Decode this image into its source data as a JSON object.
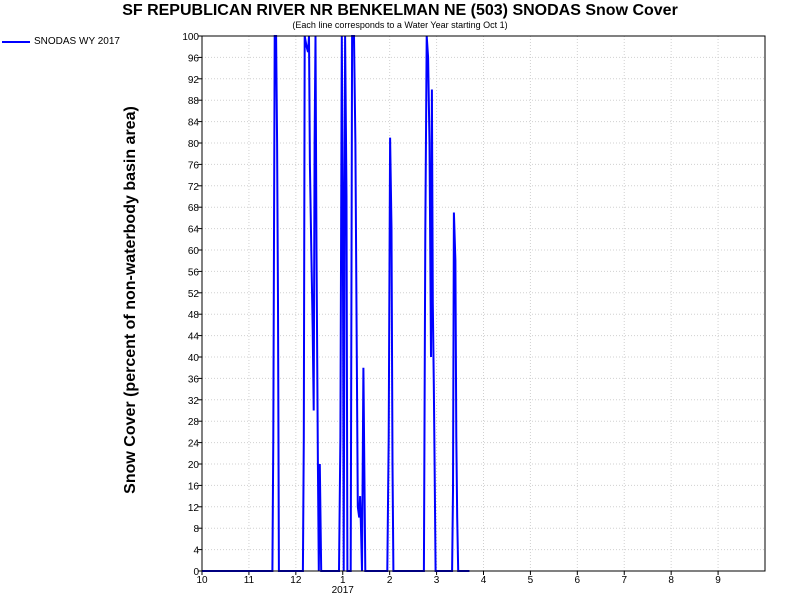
{
  "chart_data": {
    "type": "line",
    "title": "SF REPUBLICAN RIVER NR BENKELMAN NE (503) SNODAS Snow Cover",
    "subtitle": "(Each line corresponds to a Water Year starting Oct 1)",
    "ylabel": "Snow Cover (percent of non-waterbody basin area)",
    "xlabel": "",
    "legend_position": "top-left",
    "grid": true,
    "xlim": [
      0,
      12
    ],
    "ylim": [
      0,
      100
    ],
    "x_ticks": [
      {
        "x": 0,
        "label": "10"
      },
      {
        "x": 1,
        "label": "11"
      },
      {
        "x": 2,
        "label": "12"
      },
      {
        "x": 3,
        "label": "1"
      },
      {
        "x": 4,
        "label": "2"
      },
      {
        "x": 5,
        "label": "3"
      },
      {
        "x": 6,
        "label": "4"
      },
      {
        "x": 7,
        "label": "5"
      },
      {
        "x": 8,
        "label": "6"
      },
      {
        "x": 9,
        "label": "7"
      },
      {
        "x": 10,
        "label": "8"
      },
      {
        "x": 11,
        "label": "9"
      }
    ],
    "x_year_label": {
      "x": 3,
      "label": "2017"
    },
    "y_ticks": [
      0,
      4,
      8,
      12,
      16,
      20,
      24,
      28,
      32,
      36,
      40,
      44,
      48,
      52,
      56,
      60,
      64,
      68,
      72,
      76,
      80,
      84,
      88,
      92,
      96,
      100
    ],
    "series": [
      {
        "name": "SNODAS WY 2017",
        "color": "#0000ff",
        "x_unit": "months since Oct 1, 2016",
        "points": [
          [
            0.0,
            0
          ],
          [
            1.5,
            0
          ],
          [
            1.52,
            25
          ],
          [
            1.55,
            100
          ],
          [
            1.58,
            100
          ],
          [
            1.6,
            80
          ],
          [
            1.62,
            50
          ],
          [
            1.64,
            0
          ],
          [
            2.15,
            0
          ],
          [
            2.17,
            25
          ],
          [
            2.19,
            100
          ],
          [
            2.23,
            98
          ],
          [
            2.26,
            97
          ],
          [
            2.28,
            100
          ],
          [
            2.3,
            76
          ],
          [
            2.33,
            60
          ],
          [
            2.36,
            45
          ],
          [
            2.38,
            30
          ],
          [
            2.4,
            80
          ],
          [
            2.42,
            100
          ],
          [
            2.44,
            60
          ],
          [
            2.47,
            20
          ],
          [
            2.49,
            0
          ],
          [
            2.51,
            20
          ],
          [
            2.54,
            0
          ],
          [
            2.92,
            0
          ],
          [
            2.95,
            25
          ],
          [
            2.98,
            100
          ],
          [
            3.0,
            70
          ],
          [
            3.02,
            0
          ],
          [
            3.05,
            100
          ],
          [
            3.08,
            70
          ],
          [
            3.1,
            0
          ],
          [
            3.17,
            0
          ],
          [
            3.2,
            100
          ],
          [
            3.24,
            100
          ],
          [
            3.27,
            80
          ],
          [
            3.3,
            40
          ],
          [
            3.32,
            12
          ],
          [
            3.35,
            10
          ],
          [
            3.37,
            14
          ],
          [
            3.39,
            8
          ],
          [
            3.41,
            0
          ],
          [
            3.44,
            38
          ],
          [
            3.46,
            20
          ],
          [
            3.48,
            0
          ],
          [
            3.95,
            0
          ],
          [
            3.98,
            25
          ],
          [
            4.01,
            81
          ],
          [
            4.04,
            64
          ],
          [
            4.06,
            20
          ],
          [
            4.08,
            0
          ],
          [
            4.73,
            0
          ],
          [
            4.76,
            63
          ],
          [
            4.79,
            100
          ],
          [
            4.82,
            96
          ],
          [
            4.85,
            80
          ],
          [
            4.88,
            40
          ],
          [
            4.9,
            90
          ],
          [
            4.92,
            50
          ],
          [
            4.94,
            35
          ],
          [
            4.96,
            18
          ],
          [
            4.98,
            0
          ],
          [
            5.33,
            0
          ],
          [
            5.35,
            15
          ],
          [
            5.37,
            67
          ],
          [
            5.4,
            58
          ],
          [
            5.42,
            25
          ],
          [
            5.44,
            10
          ],
          [
            5.46,
            0
          ],
          [
            5.7,
            0
          ]
        ]
      }
    ]
  }
}
